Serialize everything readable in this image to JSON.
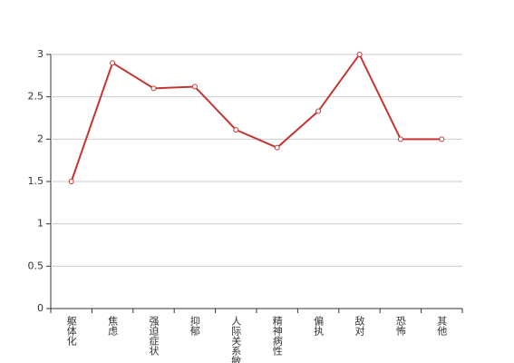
{
  "chart_data": {
    "type": "line",
    "categories": [
      "躯体化",
      "焦虑",
      "强迫症状",
      "抑郁",
      "人际关系敏感",
      "精神病性",
      "偏执",
      "敌对",
      "恐怖",
      "其他"
    ],
    "values": [
      1.5,
      2.9,
      2.6,
      2.62,
      2.11,
      1.9,
      2.33,
      3.0,
      2.0,
      2.0
    ],
    "color": "#c23531",
    "ylim": [
      0,
      3
    ],
    "yticks": [
      0,
      0.5,
      1,
      1.5,
      2,
      2.5,
      3
    ],
    "grid": true
  }
}
